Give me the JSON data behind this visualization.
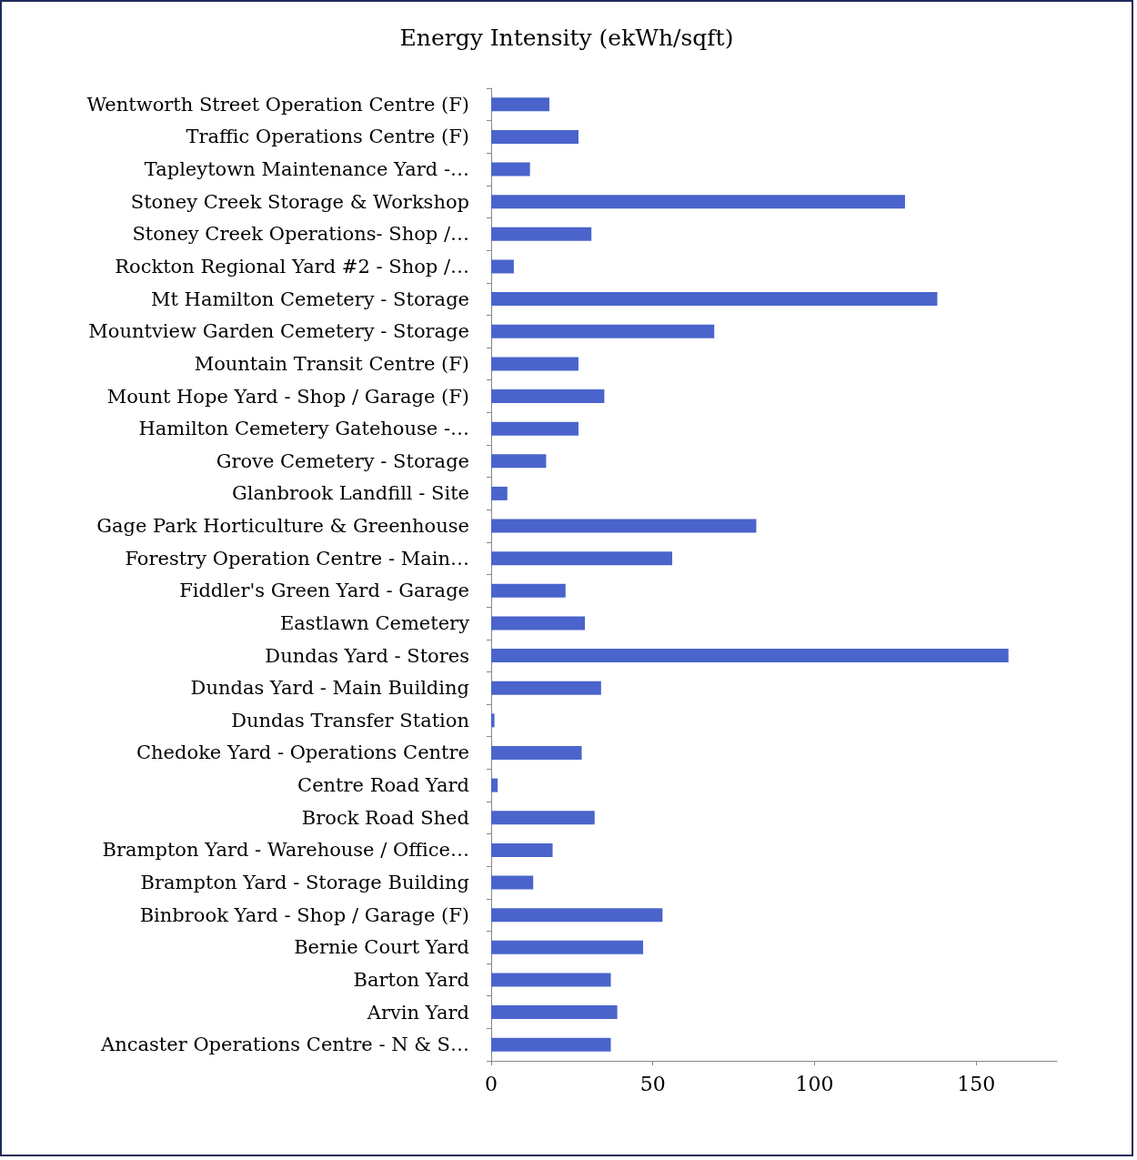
{
  "chart_data": {
    "type": "bar",
    "orientation": "horizontal",
    "title": "Energy Intensity (ekWh/sqft)",
    "categories": [
      "Wentworth Street Operation Centre (F)",
      "Traffic Operations Centre (F)",
      "Tapleytown Maintenance Yard -…",
      "Stoney Creek Storage & Workshop",
      "Stoney Creek Operations- Shop /…",
      "Rockton Regional Yard #2 - Shop /…",
      "Mt Hamilton Cemetery - Storage",
      "Mountview Garden Cemetery - Storage",
      "Mountain Transit Centre (F)",
      "Mount Hope Yard - Shop / Garage (F)",
      "Hamilton Cemetery Gatehouse -…",
      "Grove Cemetery - Storage",
      "Glanbrook Landfill - Site",
      "Gage Park Horticulture & Greenhouse",
      "Forestry Operation Centre - Main…",
      "Fiddler's Green Yard - Garage",
      "Eastlawn Cemetery",
      "Dundas Yard - Stores",
      "Dundas Yard - Main Building",
      "Dundas Transfer Station",
      "Chedoke Yard - Operations Centre",
      "Centre Road Yard",
      "Brock Road Shed",
      "Brampton Yard - Warehouse / Office…",
      "Brampton Yard - Storage Building",
      "Binbrook Yard - Shop / Garage (F)",
      "Bernie Court Yard",
      "Barton Yard",
      "Arvin Yard",
      "Ancaster Operations Centre - N & S…"
    ],
    "values": [
      18,
      27,
      12,
      128,
      31,
      7,
      138,
      69,
      27,
      35,
      27,
      17,
      5,
      82,
      56,
      23,
      29,
      160,
      34,
      1,
      28,
      2,
      32,
      19,
      13,
      53,
      47,
      37,
      39,
      37
    ],
    "color": "#4a64cc",
    "xlim": [
      0,
      175
    ],
    "xticks": [
      0,
      50,
      100,
      150
    ]
  }
}
